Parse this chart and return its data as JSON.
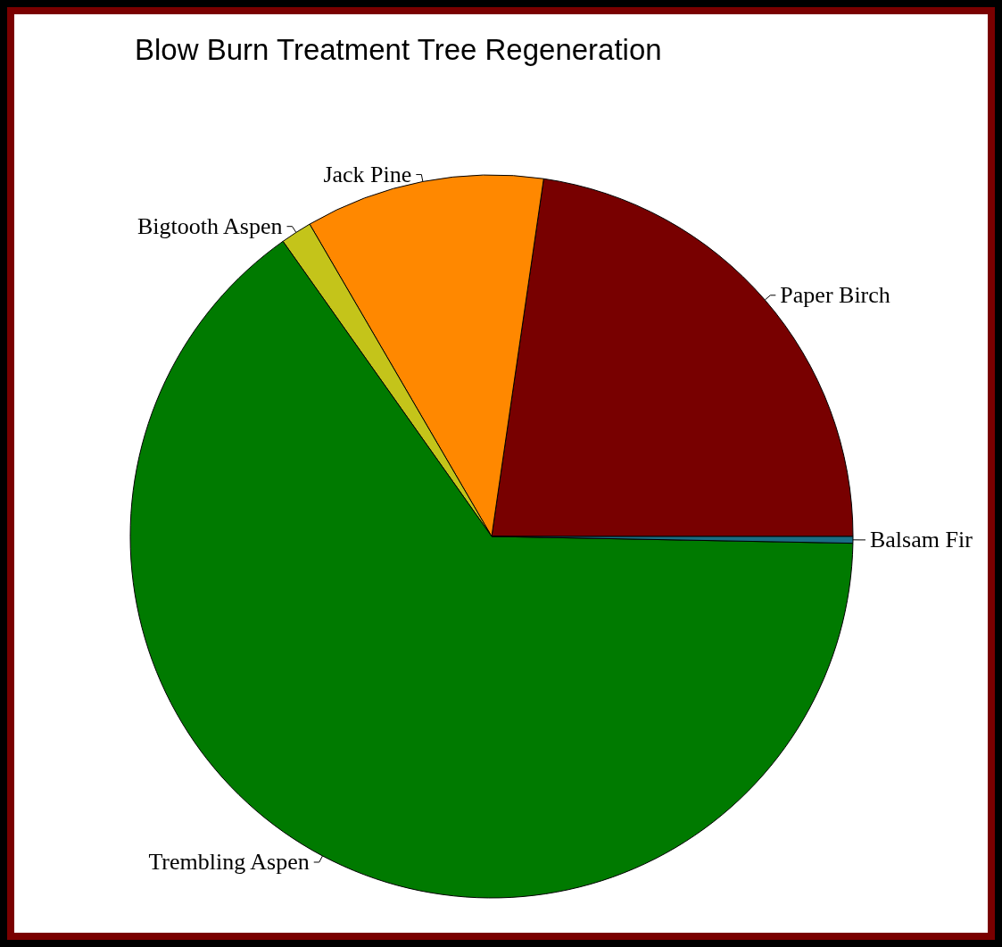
{
  "chart_data": {
    "type": "pie",
    "title": "Blow Burn Treatment Tree Regeneration",
    "categories": [
      "Paper Birch",
      "Jack Pine",
      "Bigtooth Aspen",
      "Trembling Aspen",
      "Balsam Fir"
    ],
    "values": [
      22.7,
      10.7,
      1.4,
      64.9,
      0.3
    ],
    "colors": [
      "#780000",
      "#ff8800",
      "#c4c41a",
      "#007a00",
      "#1a6e84"
    ]
  }
}
